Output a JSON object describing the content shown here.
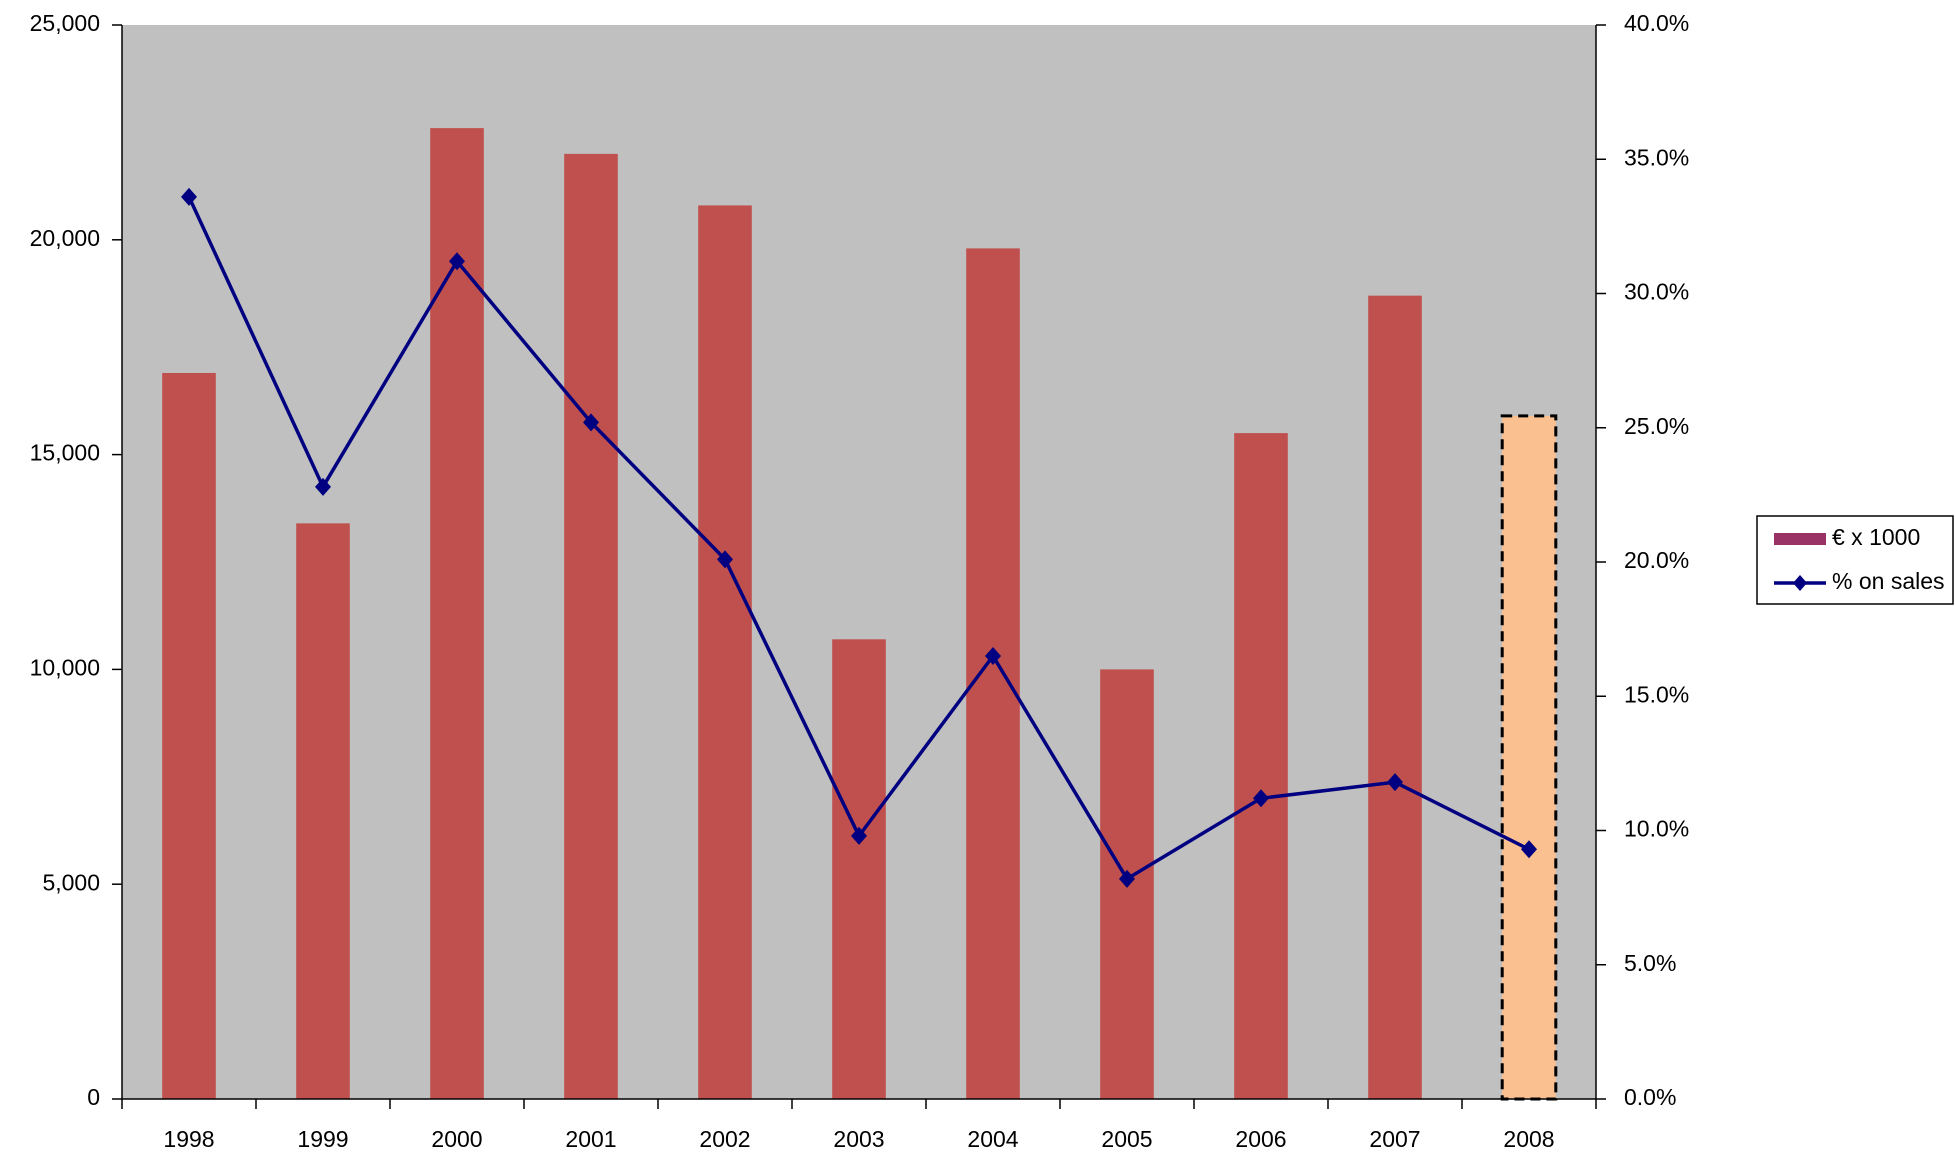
{
  "chart_data": {
    "type": "bar-line",
    "categories": [
      "1998",
      "1999",
      "2000",
      "2001",
      "2002",
      "2003",
      "2004",
      "2005",
      "2006",
      "2007",
      "2008"
    ],
    "series": [
      {
        "name": "€ x 1000",
        "type": "bar",
        "color": "#993366",
        "colors": [
          "#c0504d",
          "#c0504d",
          "#c0504d",
          "#c0504d",
          "#c0504d",
          "#c0504d",
          "#c0504d",
          "#c0504d",
          "#c0504d",
          "#c0504d",
          "#fac090"
        ],
        "dashed": [
          false,
          false,
          false,
          false,
          false,
          false,
          false,
          false,
          false,
          false,
          true
        ],
        "values": [
          16900,
          13400,
          22600,
          22000,
          20800,
          10700,
          19800,
          10000,
          15500,
          18700,
          15900
        ]
      },
      {
        "name": "% on sales",
        "type": "line",
        "axis": "y2",
        "color": "#000080",
        "values": [
          33.6,
          22.8,
          31.2,
          25.2,
          20.1,
          9.8,
          16.5,
          8.2,
          11.2,
          11.8,
          9.3
        ]
      }
    ],
    "ylim": [
      0,
      25000
    ],
    "yticks": [
      0,
      {
        "value": 5000,
        "label": "5,000"
      },
      {
        "value": 10000,
        "label": "10,000"
      },
      {
        "value": 15000,
        "label": "15,000"
      },
      {
        "value": 20000,
        "label": "20,000"
      },
      {
        "value": 25000,
        "label": "25,000"
      }
    ],
    "y2lim": [
      0,
      40
    ],
    "y2ticks": [
      {
        "value": 0,
        "label": "0.0%"
      },
      {
        "value": 5,
        "label": "5.0%"
      },
      {
        "value": 10,
        "label": "10.0%"
      },
      {
        "value": 15,
        "label": "15.0%"
      },
      {
        "value": 20,
        "label": "20.0%"
      },
      {
        "value": 25,
        "label": "25.0%"
      },
      {
        "value": 30,
        "label": "30.0%"
      },
      {
        "value": 35,
        "label": "35.0%"
      },
      {
        "value": 40,
        "label": "40.0%"
      }
    ],
    "plot_background": "#c0c0c0",
    "legend": "right"
  }
}
